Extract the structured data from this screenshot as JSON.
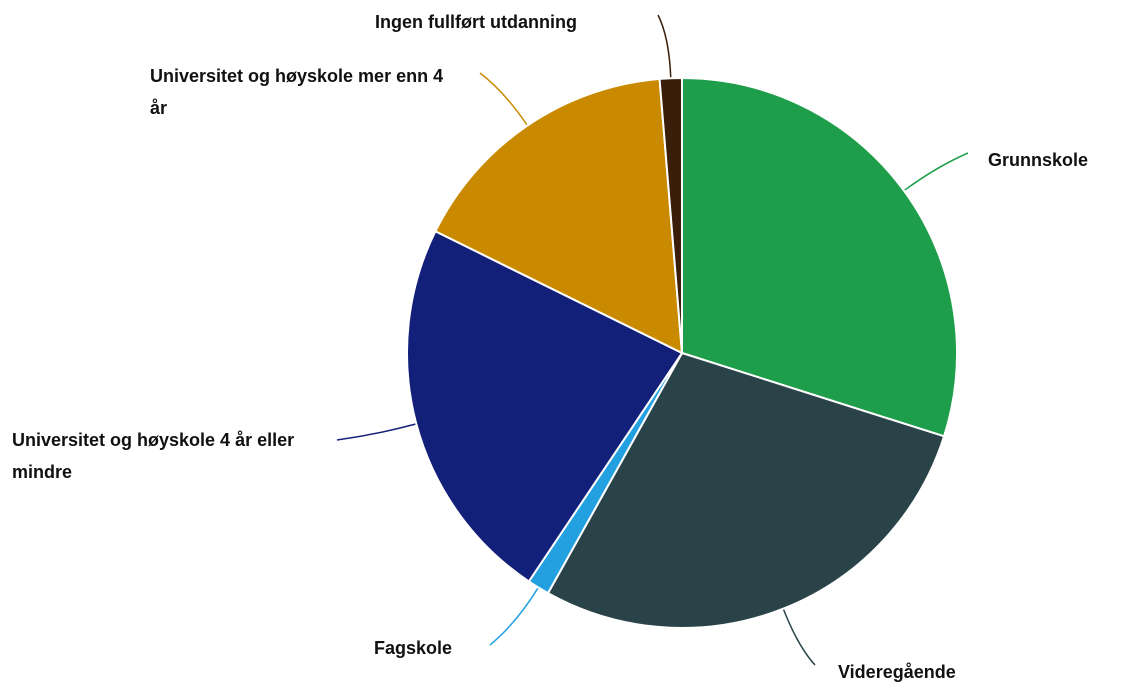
{
  "chart_data": {
    "type": "pie",
    "categories": [
      "Grunnskole",
      "Videregående",
      "Fagskole",
      "Universitet og høyskole 4 år eller mindre",
      "Universitet og høyskole mer enn 4 år",
      "Ingen fullført utdanning"
    ],
    "values": [
      29.9,
      28.2,
      1.3,
      22.9,
      16.4,
      1.3
    ],
    "colors": [
      "#1e9e4a",
      "#2a4348",
      "#22a0e0",
      "#13207a",
      "#c98a00",
      "#3a1e0a"
    ]
  }
}
